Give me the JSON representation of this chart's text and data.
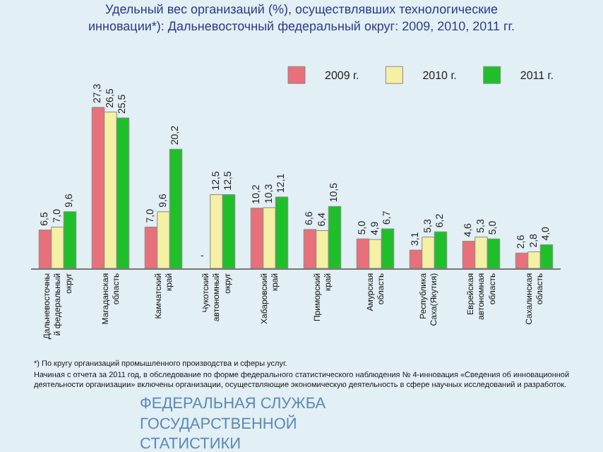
{
  "chart_data": {
    "type": "bar",
    "title": "Удельный вес организаций (%), осуществлявших технологические инновации*): Дальневосточный федеральный округ: 2009, 2010, 2011 гг.",
    "categories": [
      "Дальневосточный федеральный округ",
      "Магаданская область",
      "Камчатский край",
      "Чукотский автономный округ",
      "Хабаровский край",
      "Приморский край",
      "Амурская область",
      "Республика Саха(Якутия)",
      "Еврейская автономная область",
      "Сахалинская область"
    ],
    "series": [
      {
        "name": "2009 г.",
        "color": "#e8707a",
        "values": [
          6.5,
          27.3,
          7.0,
          null,
          10.2,
          6.6,
          5.0,
          3.1,
          4.6,
          2.6
        ],
        "value_labels": [
          "6,5",
          "27,3",
          "7,0",
          "-",
          "10,2",
          "6,6",
          "5,0",
          "3,1",
          "4,6",
          "2,6"
        ]
      },
      {
        "name": "2010 г.",
        "color": "#f4f0a4",
        "values": [
          7.0,
          26.5,
          9.6,
          12.5,
          10.3,
          6.4,
          4.9,
          5.3,
          5.3,
          2.8
        ],
        "value_labels": [
          "7,0",
          "26,5",
          "9,6",
          "12,5",
          "10,3",
          "6,4",
          "4,9",
          "5,3",
          "5,3",
          "2,8"
        ]
      },
      {
        "name": "2011 г.",
        "color": "#1fbf2a",
        "values": [
          9.6,
          25.5,
          20.2,
          12.5,
          12.1,
          10.5,
          6.7,
          6.2,
          5.0,
          4.0
        ],
        "value_labels": [
          "9,6",
          "25,5",
          "20,2",
          "12,5",
          "12,1",
          "10,5",
          "6,7",
          "6,2",
          "5,0",
          "4,0"
        ]
      }
    ],
    "legend": "top right",
    "annotations": [
      "*) По кругу организаций промышленного производства и сферы услуг.",
      "Начиная с отчета за 2011 год, в обследование по форме федерального статистического наблюдения № 4-инновация «Сведения об инновационной деятельности организации» включены организации, осуществляющие экономическую деятельность в сфере научных исследований и разработок.",
      "ФЕДЕРАЛЬНАЯ СЛУЖБА ГОСУДАРСТВЕННОЙ СТАТИСТИКИ"
    ]
  }
}
